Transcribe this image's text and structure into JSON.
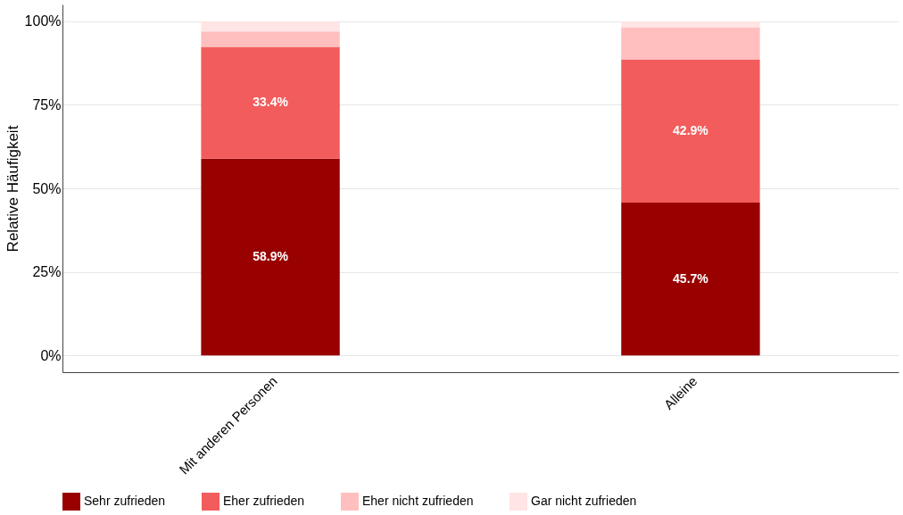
{
  "chart_data": {
    "type": "bar",
    "stacked": true,
    "ylabel": "Relative Häufigkeit",
    "categories": [
      "Mit anderen Personen",
      "Alleine"
    ],
    "series": [
      {
        "name": "Sehr zufrieden",
        "color": "#990000",
        "values": [
          58.9,
          45.7
        ],
        "value_labels": [
          "58.9%",
          "45.7%"
        ]
      },
      {
        "name": "Eher zufrieden",
        "color": "#f25c5c",
        "values": [
          33.4,
          42.9
        ],
        "value_labels": [
          "33.4%",
          "42.9%"
        ]
      },
      {
        "name": "Eher nicht zufrieden",
        "color": "#ffbfbf",
        "values": [
          4.6,
          9.6
        ]
      },
      {
        "name": "Gar nicht zufrieden",
        "color": "#ffe5e5",
        "values": [
          3.1,
          1.8
        ]
      }
    ],
    "ylim": [
      -5,
      105
    ],
    "yticks": [
      {
        "value": 0,
        "label": "0%"
      },
      {
        "value": 25,
        "label": "25%"
      },
      {
        "value": 50,
        "label": "50%"
      },
      {
        "value": 75,
        "label": "75%"
      },
      {
        "value": 100,
        "label": "100%"
      }
    ],
    "grid": "y",
    "legend": "bottom"
  }
}
